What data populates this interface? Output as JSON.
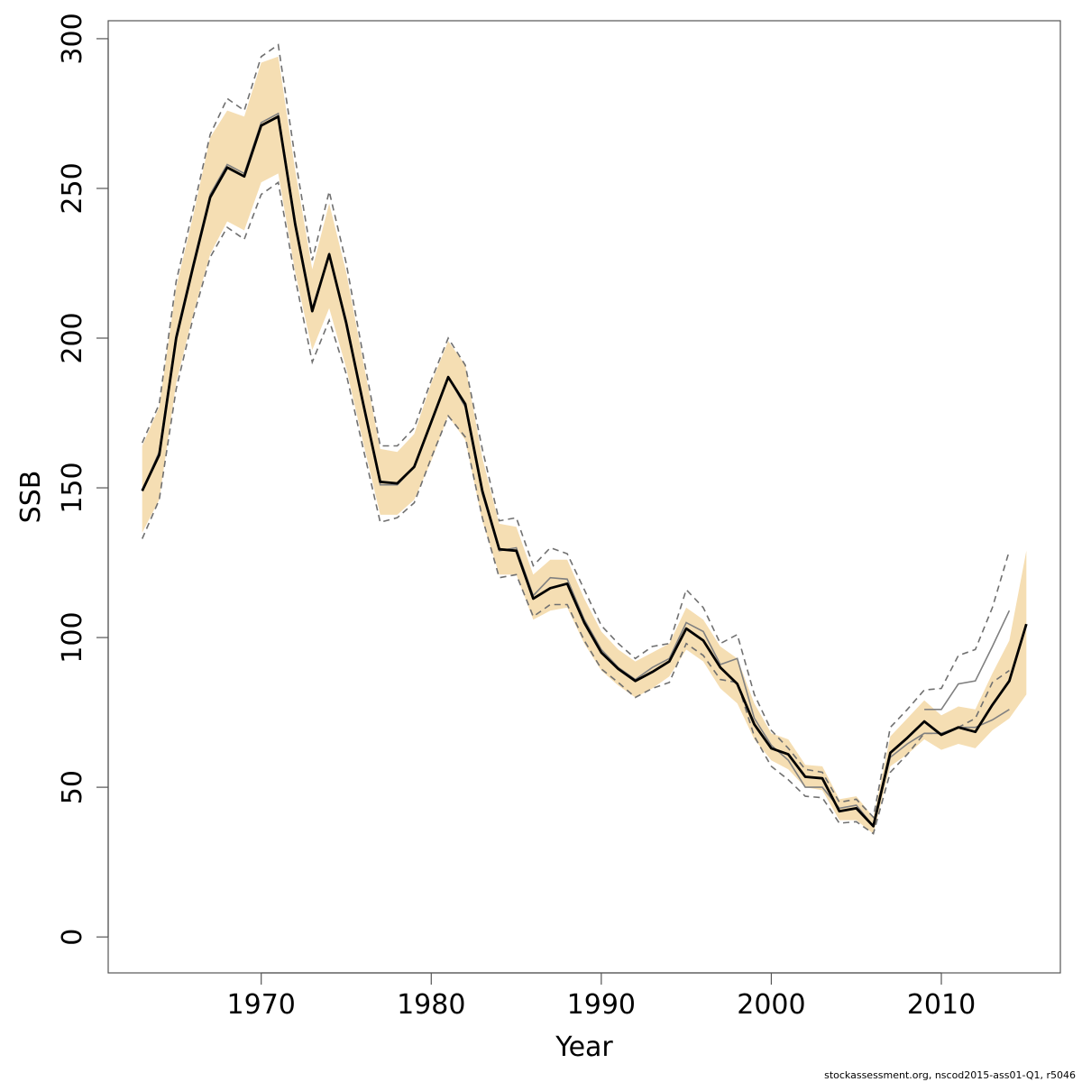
{
  "chart_data": {
    "type": "line",
    "xlabel": "Year",
    "ylabel": "SSB",
    "xlim": [
      1961,
      2017
    ],
    "ylim": [
      -12,
      306
    ],
    "x_ticks": [
      1970,
      1980,
      1990,
      2000,
      2010
    ],
    "y_ticks": [
      0,
      50,
      100,
      150,
      200,
      250,
      300
    ],
    "grid": false,
    "legend": "none",
    "colors": {
      "band": "#f5deb3",
      "estimate": "#000000",
      "previous": "#808080",
      "previous_ci": "#707070",
      "axis": "#555555"
    },
    "series": [
      {
        "role": "estimate",
        "style": "thick black line",
        "x": [
          1963,
          1964,
          1965,
          1966,
          1967,
          1968,
          1969,
          1970,
          1971,
          1972,
          1973,
          1974,
          1975,
          1976,
          1977,
          1978,
          1979,
          1980,
          1981,
          1982,
          1983,
          1984,
          1985,
          1986,
          1987,
          1988,
          1989,
          1990,
          1991,
          1992,
          1993,
          1994,
          1995,
          1996,
          1997,
          1998,
          1999,
          2000,
          2001,
          2002,
          2003,
          2004,
          2005,
          2006,
          2007,
          2008,
          2009,
          2010,
          2011,
          2012,
          2013,
          2014,
          2015
        ],
        "values": [
          149,
          161,
          200,
          224,
          247,
          257,
          254,
          271,
          274,
          238,
          209,
          228,
          205,
          178,
          152,
          151.5,
          157,
          172,
          187,
          178,
          149,
          129.5,
          129,
          113,
          116.5,
          118,
          105,
          95,
          89.5,
          85.5,
          88.5,
          92,
          103,
          99,
          90,
          84.5,
          71,
          63,
          61,
          53.5,
          53,
          42,
          43,
          37,
          61.5,
          66.5,
          72,
          67.5,
          70,
          68.5,
          77.5,
          85.5,
          104.5
        ]
      },
      {
        "role": "confidence-band",
        "style": "wheat fill",
        "x": [
          1963,
          1964,
          1965,
          1966,
          1967,
          1968,
          1969,
          1970,
          1971,
          1972,
          1973,
          1974,
          1975,
          1976,
          1977,
          1978,
          1979,
          1980,
          1981,
          1982,
          1983,
          1984,
          1985,
          1986,
          1987,
          1988,
          1989,
          1990,
          1991,
          1992,
          1993,
          1994,
          1995,
          1996,
          1997,
          1998,
          1999,
          2000,
          2001,
          2002,
          2003,
          2004,
          2005,
          2006,
          2007,
          2008,
          2009,
          2010,
          2011,
          2012,
          2013,
          2014,
          2015
        ],
        "lower": [
          135,
          146,
          185,
          208,
          228,
          239,
          236,
          252,
          255,
          222,
          196,
          210,
          190,
          165,
          141,
          141,
          146,
          159,
          174,
          166,
          139,
          121,
          121,
          106,
          109,
          110,
          98,
          89,
          84,
          80,
          83,
          87,
          96,
          92,
          83,
          78,
          66,
          59,
          56,
          50,
          49,
          39,
          39,
          34.5,
          57,
          61,
          66,
          62.5,
          64.5,
          63,
          69,
          73,
          81
        ],
        "upper": [
          164,
          177,
          217,
          241,
          267,
          276,
          274,
          292,
          294,
          256,
          223,
          245,
          222,
          192,
          163,
          162,
          168,
          185,
          199,
          191,
          160,
          138,
          137,
          121,
          126,
          126,
          113,
          102,
          96,
          92,
          95,
          98,
          110,
          106,
          97,
          93,
          78,
          68,
          66,
          57.5,
          57,
          46,
          47,
          40,
          67,
          73,
          79,
          74,
          77,
          76,
          88,
          99,
          129
        ]
      },
      {
        "role": "previous-assessment",
        "style": "thin grey line",
        "x": [
          1963,
          1964,
          1965,
          1966,
          1967,
          1968,
          1969,
          1970,
          1971,
          1972,
          1973,
          1974,
          1975,
          1976,
          1977,
          1978,
          1979,
          1980,
          1981,
          1982,
          1983,
          1984,
          1985,
          1986,
          1987,
          1988,
          1989,
          1990,
          1991,
          1992,
          1993,
          1994,
          1995,
          1996,
          1997,
          1998,
          1999,
          2000,
          2001,
          2002,
          2003,
          2004,
          2005,
          2006,
          2007,
          2008,
          2009,
          2010,
          2011,
          2012,
          2013,
          2014
        ],
        "values": [
          149,
          162,
          201,
          225,
          248,
          258,
          255,
          272,
          275,
          239,
          210,
          228,
          206,
          178,
          151,
          151,
          157,
          172,
          187,
          177,
          148,
          129,
          130,
          114,
          120,
          119.5,
          106,
          96,
          90,
          86,
          90,
          93,
          105,
          102,
          91,
          93,
          73,
          64,
          59,
          50,
          50,
          43,
          44,
          37,
          60,
          64.5,
          68,
          68,
          70,
          70,
          72.5,
          76
        ]
      },
      {
        "role": "previous-assessment-ci",
        "style": "grey dashed lines",
        "x": [
          1963,
          1964,
          1965,
          1966,
          1967,
          1968,
          1969,
          1970,
          1971,
          1972,
          1973,
          1974,
          1975,
          1976,
          1977,
          1978,
          1979,
          1980,
          1981,
          1982,
          1983,
          1984,
          1985,
          1986,
          1987,
          1988,
          1989,
          1990,
          1991,
          1992,
          1993,
          1994,
          1995,
          1996,
          1997,
          1998,
          1999,
          2000,
          2001,
          2002,
          2003,
          2004,
          2005,
          2006,
          2007,
          2008,
          2009,
          2010,
          2011,
          2012,
          2013,
          2014
        ],
        "lower": [
          133,
          146,
          183,
          207,
          227,
          237,
          233,
          248,
          252,
          220,
          192,
          206,
          188,
          163,
          138.5,
          140,
          145,
          160,
          174,
          167,
          140,
          120,
          121,
          107,
          111,
          111,
          99,
          89.5,
          85,
          80,
          83,
          85,
          98,
          94,
          86,
          85,
          67,
          57,
          52.5,
          47,
          46.5,
          38,
          38.5,
          34.5,
          55,
          61,
          68,
          68,
          70,
          73,
          85,
          89
        ],
        "upper": [
          165,
          178,
          219,
          243,
          268,
          280,
          276,
          294,
          298,
          260,
          226,
          249,
          225,
          194,
          164,
          164,
          170,
          186,
          200,
          191,
          163,
          139,
          140,
          124,
          130,
          128,
          116,
          104,
          98,
          93,
          97,
          98,
          116,
          110,
          98,
          101,
          81,
          69,
          63,
          56,
          55,
          45,
          46,
          40,
          70,
          76,
          82.5,
          83,
          94,
          96,
          110,
          129
        ]
      },
      {
        "role": "previous-assessment-tail",
        "style": "thin grey line",
        "x": [
          2009,
          2010,
          2011,
          2012,
          2013,
          2014
        ],
        "values": [
          76,
          76,
          84.5,
          85.5,
          97,
          109
        ]
      }
    ]
  },
  "footer": {
    "source_text": "stockassessment.org, nscod2015-ass01-Q1, r5046"
  }
}
